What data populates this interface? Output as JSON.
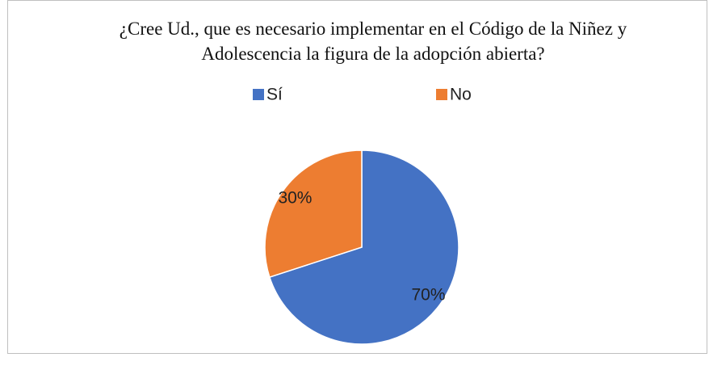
{
  "chart_data": {
    "type": "pie",
    "title": "¿Cree Ud., que es necesario implementar en el Código de la Niñez y Adolescencia la figura de la adopción abierta?",
    "categories": [
      "Sí",
      "No"
    ],
    "values": [
      70,
      30
    ],
    "value_labels": [
      "70%",
      "30%"
    ],
    "colors": [
      "#4472c4",
      "#ed7d31"
    ],
    "legend": "top"
  }
}
